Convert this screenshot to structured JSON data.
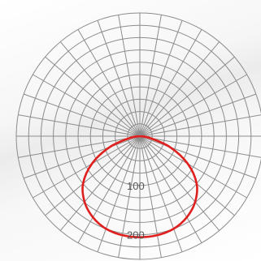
{
  "chart_data": {
    "type": "polar-line",
    "title": "",
    "grid": true,
    "angle_step_deg": 10,
    "r_max": 250,
    "ring_step": 25,
    "tick_labels": [
      "100",
      "200"
    ],
    "tick_values": [
      100,
      200
    ],
    "series": [
      {
        "color": "#e0201f",
        "angles": [
          0,
          10,
          20,
          30,
          40,
          50,
          60,
          70,
          80,
          90
        ],
        "values": [
          205,
          204,
          200,
          190,
          174,
          150,
          112,
          65,
          20,
          0
        ]
      }
    ]
  }
}
